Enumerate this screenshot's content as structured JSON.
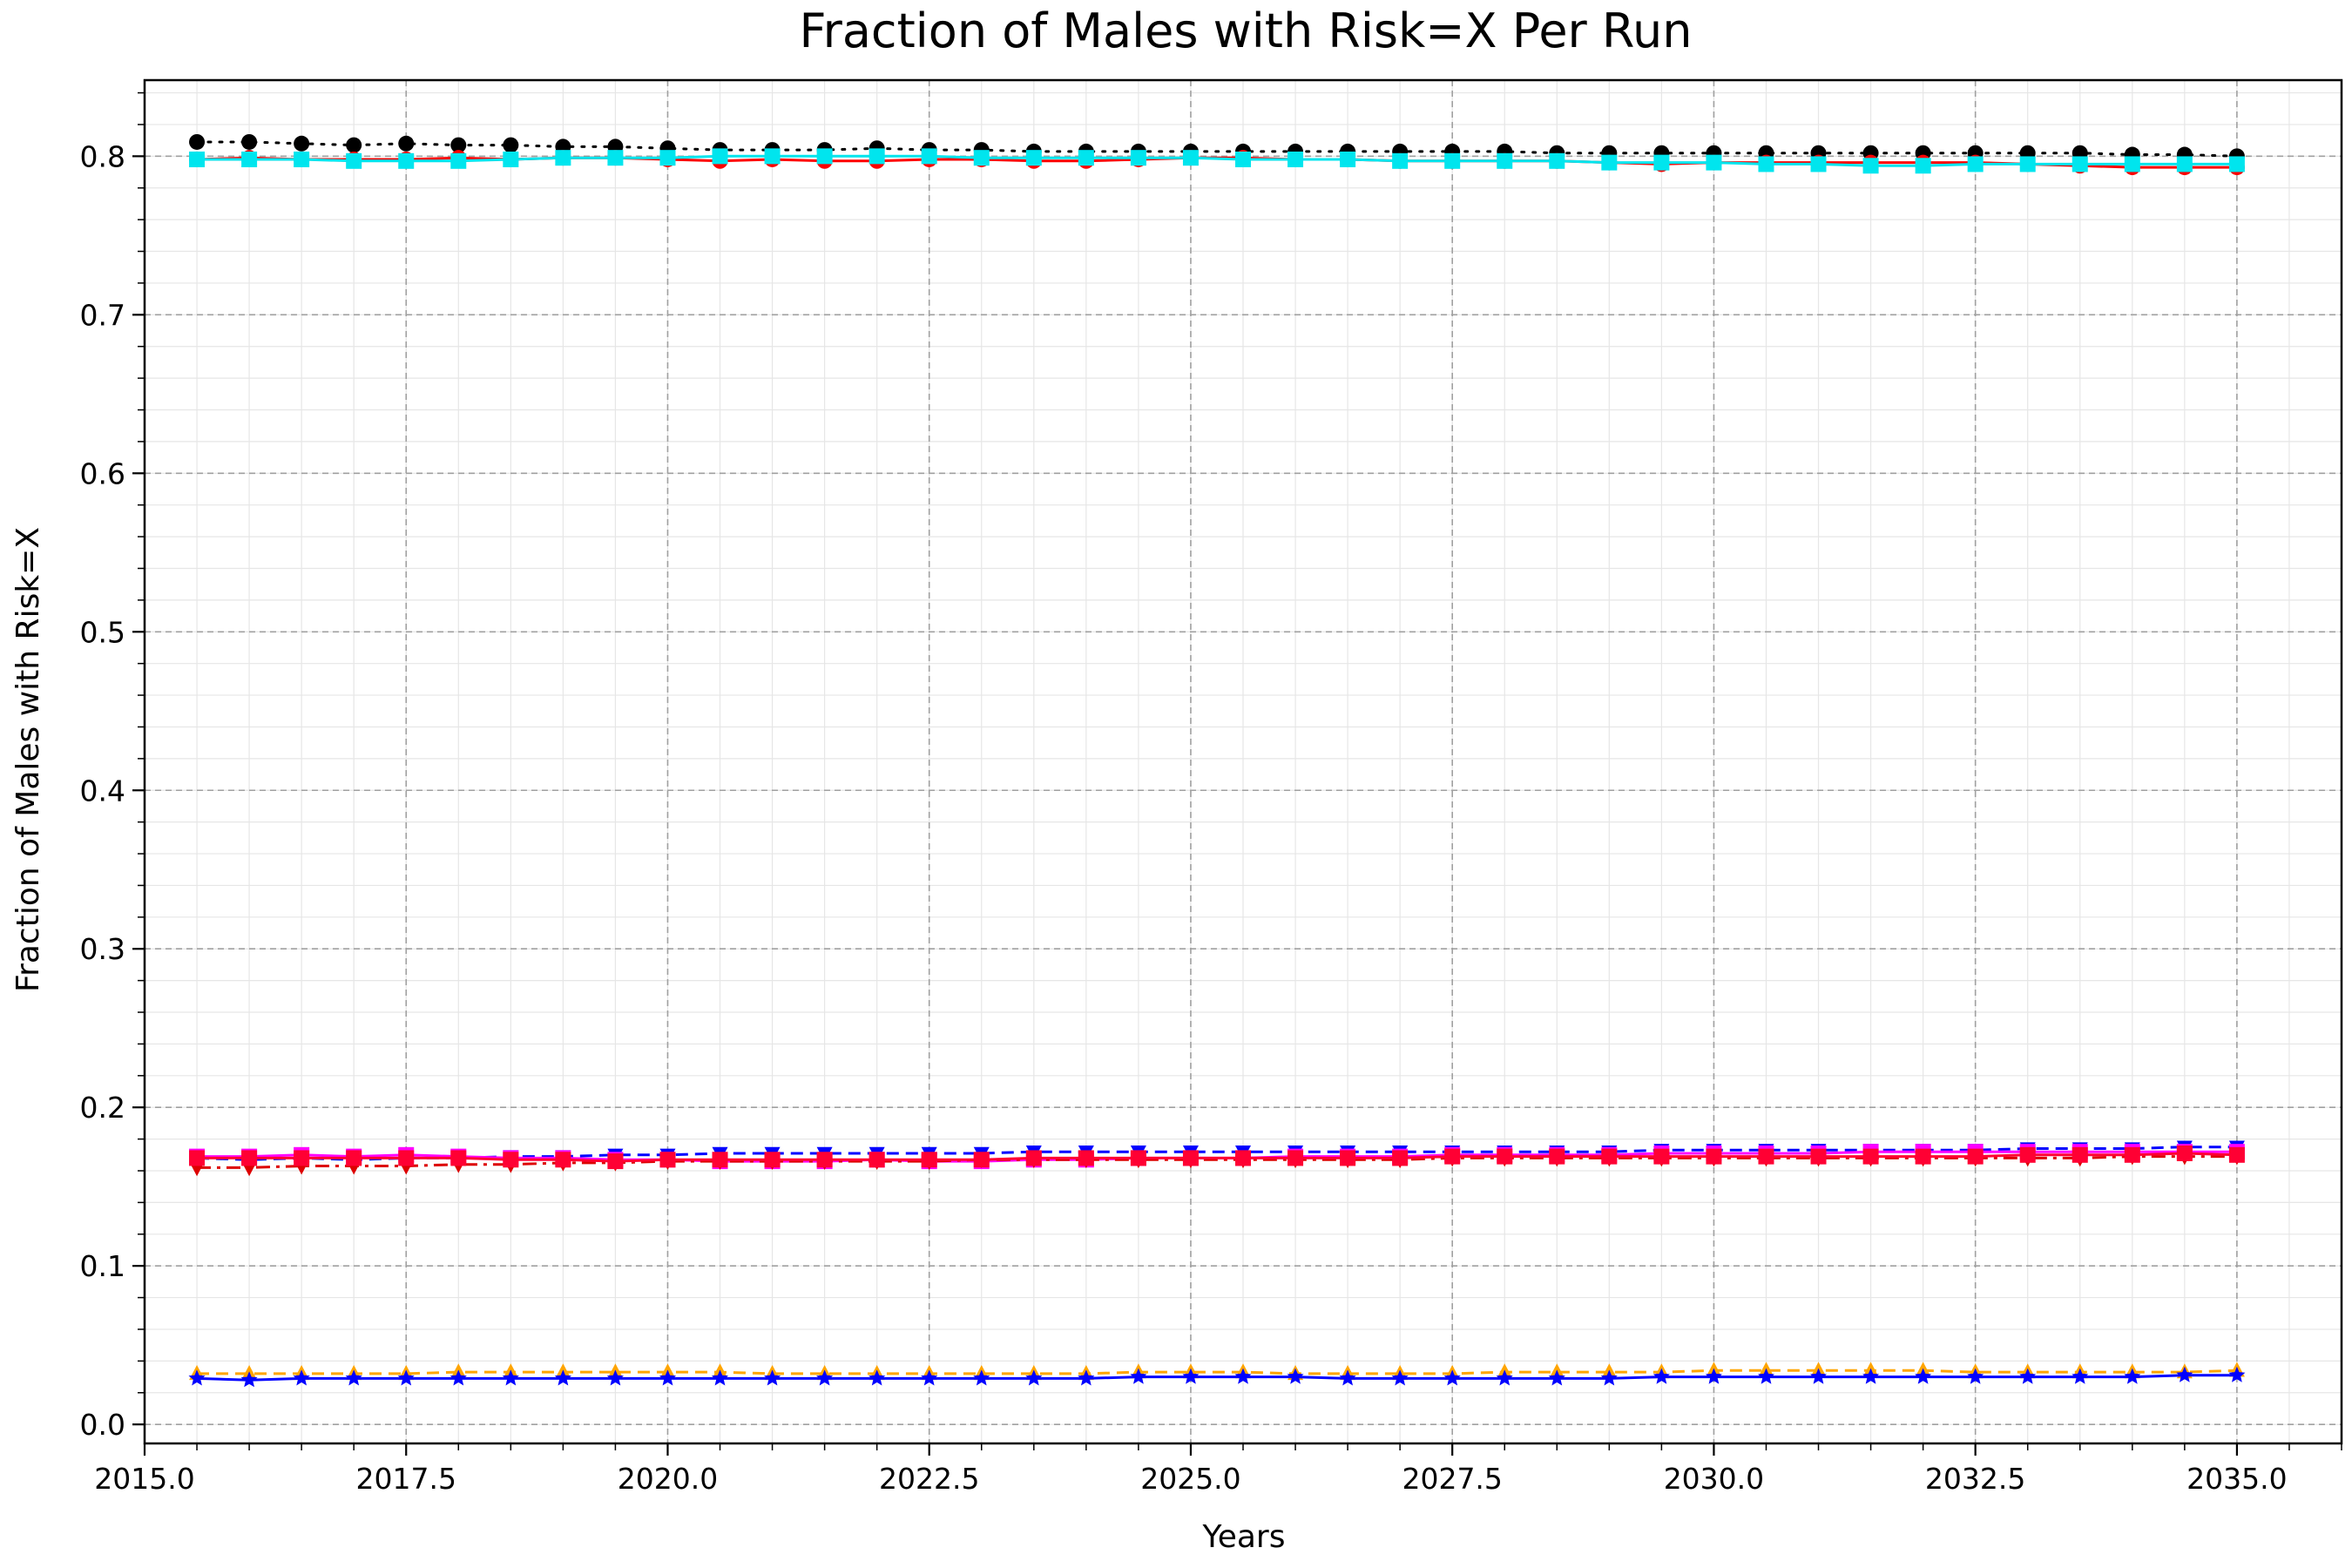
{
  "chart_data": {
    "type": "line",
    "title": "Fraction of Males with Risk=X Per Run",
    "xlabel": "Years",
    "ylabel": "Fraction of Males with Risk=X",
    "xlim": [
      2015.0,
      2036.0
    ],
    "ylim": [
      -0.012,
      0.848
    ],
    "xticks": [
      "2015.0",
      "2017.5",
      "2020.0",
      "2022.5",
      "2025.0",
      "2027.5",
      "2030.0",
      "2032.5",
      "2035.0"
    ],
    "yticks": [
      "0.0",
      "0.1",
      "0.2",
      "0.3",
      "0.4",
      "0.5",
      "0.6",
      "0.7",
      "0.8"
    ],
    "grid": true,
    "x": [
      2015.5,
      2016.0,
      2016.5,
      2017.0,
      2017.5,
      2018.0,
      2018.5,
      2019.0,
      2019.5,
      2020.0,
      2020.5,
      2021.0,
      2021.5,
      2022.0,
      2022.5,
      2023.0,
      2023.5,
      2024.0,
      2024.5,
      2025.0,
      2025.5,
      2026.0,
      2026.5,
      2027.0,
      2027.5,
      2028.0,
      2028.5,
      2029.0,
      2029.5,
      2030.0,
      2030.5,
      2031.0,
      2031.5,
      2032.0,
      2032.5,
      2033.0,
      2033.5,
      2034.0,
      2034.5,
      2035.0
    ],
    "series": [
      {
        "color": "#000000",
        "dash": "dot",
        "marker": "circle",
        "values": [
          0.809,
          0.809,
          0.808,
          0.807,
          0.808,
          0.807,
          0.807,
          0.806,
          0.806,
          0.805,
          0.804,
          0.804,
          0.804,
          0.805,
          0.804,
          0.804,
          0.803,
          0.803,
          0.803,
          0.803,
          0.803,
          0.803,
          0.803,
          0.803,
          0.803,
          0.803,
          0.802,
          0.802,
          0.802,
          0.802,
          0.802,
          0.802,
          0.802,
          0.802,
          0.802,
          0.802,
          0.802,
          0.801,
          0.801,
          0.8
        ]
      },
      {
        "color": "#ff0000",
        "dash": "solid",
        "marker": "circle",
        "values": [
          0.798,
          0.799,
          0.798,
          0.798,
          0.798,
          0.799,
          0.798,
          0.799,
          0.799,
          0.798,
          0.797,
          0.798,
          0.797,
          0.797,
          0.798,
          0.798,
          0.797,
          0.797,
          0.798,
          0.799,
          0.799,
          0.798,
          0.798,
          0.797,
          0.797,
          0.797,
          0.797,
          0.796,
          0.795,
          0.796,
          0.796,
          0.796,
          0.796,
          0.796,
          0.796,
          0.795,
          0.794,
          0.793,
          0.793,
          0.793
        ]
      },
      {
        "color": "#00e5ee",
        "dash": "solid",
        "marker": "square",
        "values": [
          0.798,
          0.798,
          0.798,
          0.797,
          0.797,
          0.797,
          0.798,
          0.799,
          0.799,
          0.799,
          0.8,
          0.8,
          0.8,
          0.8,
          0.8,
          0.799,
          0.799,
          0.799,
          0.799,
          0.799,
          0.798,
          0.798,
          0.798,
          0.797,
          0.797,
          0.797,
          0.797,
          0.796,
          0.796,
          0.796,
          0.795,
          0.795,
          0.794,
          0.794,
          0.795,
          0.795,
          0.795,
          0.795,
          0.795,
          0.795
        ]
      },
      {
        "color": "#0000ff",
        "dash": "dashed",
        "marker": "triangle-down",
        "values": [
          0.168,
          0.167,
          0.168,
          0.167,
          0.168,
          0.168,
          0.169,
          0.169,
          0.17,
          0.17,
          0.171,
          0.171,
          0.171,
          0.171,
          0.171,
          0.171,
          0.172,
          0.172,
          0.172,
          0.172,
          0.172,
          0.172,
          0.172,
          0.172,
          0.172,
          0.172,
          0.172,
          0.172,
          0.173,
          0.173,
          0.173,
          0.173,
          0.173,
          0.173,
          0.173,
          0.174,
          0.174,
          0.174,
          0.175,
          0.175
        ]
      },
      {
        "color": "#ff00ff",
        "dash": "solid",
        "marker": "square",
        "values": [
          0.169,
          0.169,
          0.17,
          0.169,
          0.17,
          0.169,
          0.168,
          0.168,
          0.167,
          0.167,
          0.166,
          0.166,
          0.166,
          0.167,
          0.166,
          0.166,
          0.167,
          0.167,
          0.168,
          0.168,
          0.168,
          0.169,
          0.169,
          0.169,
          0.17,
          0.17,
          0.17,
          0.17,
          0.171,
          0.171,
          0.171,
          0.171,
          0.172,
          0.172,
          0.172,
          0.172,
          0.172,
          0.172,
          0.172,
          0.172
        ]
      },
      {
        "color": "#dd0000",
        "dash": "dashdot",
        "marker": "triangle-down",
        "values": [
          0.162,
          0.162,
          0.163,
          0.163,
          0.163,
          0.164,
          0.164,
          0.165,
          0.165,
          0.166,
          0.166,
          0.166,
          0.166,
          0.166,
          0.166,
          0.167,
          0.167,
          0.167,
          0.167,
          0.167,
          0.167,
          0.167,
          0.167,
          0.167,
          0.168,
          0.168,
          0.168,
          0.168,
          0.168,
          0.168,
          0.168,
          0.168,
          0.168,
          0.168,
          0.168,
          0.168,
          0.168,
          0.169,
          0.169,
          0.169
        ]
      },
      {
        "color": "#ff0033",
        "dash": "solid",
        "marker": "square",
        "values": [
          0.168,
          0.168,
          0.168,
          0.168,
          0.168,
          0.168,
          0.167,
          0.167,
          0.166,
          0.167,
          0.167,
          0.167,
          0.167,
          0.167,
          0.167,
          0.167,
          0.168,
          0.168,
          0.168,
          0.168,
          0.168,
          0.168,
          0.168,
          0.168,
          0.169,
          0.169,
          0.169,
          0.169,
          0.169,
          0.169,
          0.169,
          0.169,
          0.169,
          0.169,
          0.169,
          0.17,
          0.17,
          0.17,
          0.171,
          0.17
        ]
      },
      {
        "color": "#ffa500",
        "dash": "dashed",
        "marker": "triangle-up",
        "values": [
          0.032,
          0.032,
          0.032,
          0.032,
          0.032,
          0.033,
          0.033,
          0.033,
          0.033,
          0.033,
          0.033,
          0.032,
          0.032,
          0.032,
          0.032,
          0.032,
          0.032,
          0.032,
          0.033,
          0.033,
          0.033,
          0.032,
          0.032,
          0.032,
          0.032,
          0.033,
          0.033,
          0.033,
          0.033,
          0.034,
          0.034,
          0.034,
          0.034,
          0.034,
          0.033,
          0.033,
          0.033,
          0.033,
          0.033,
          0.034
        ]
      },
      {
        "color": "#0000ff",
        "dash": "solid",
        "marker": "star",
        "values": [
          0.029,
          0.028,
          0.029,
          0.029,
          0.029,
          0.029,
          0.029,
          0.029,
          0.029,
          0.029,
          0.029,
          0.029,
          0.029,
          0.029,
          0.029,
          0.029,
          0.029,
          0.029,
          0.03,
          0.03,
          0.03,
          0.03,
          0.029,
          0.029,
          0.029,
          0.029,
          0.029,
          0.029,
          0.03,
          0.03,
          0.03,
          0.03,
          0.03,
          0.03,
          0.03,
          0.03,
          0.03,
          0.03,
          0.031,
          0.031
        ]
      }
    ]
  }
}
